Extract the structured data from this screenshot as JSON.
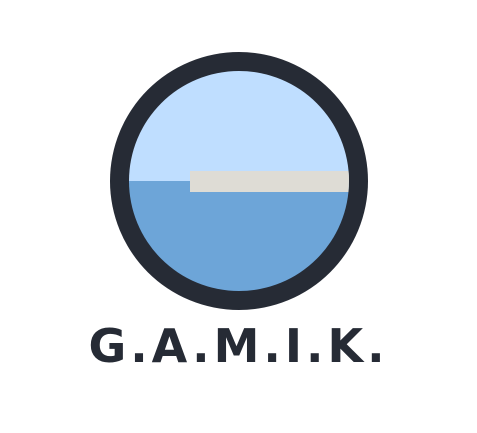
{
  "logo": {
    "wordmark": "G.A.M.I.K.",
    "colors": {
      "ring": "#262b35",
      "sky": "#bfdeff",
      "water": "#6da5d8",
      "bar": "#dedcd5",
      "text": "#262b35",
      "background": "#ffffff"
    }
  }
}
